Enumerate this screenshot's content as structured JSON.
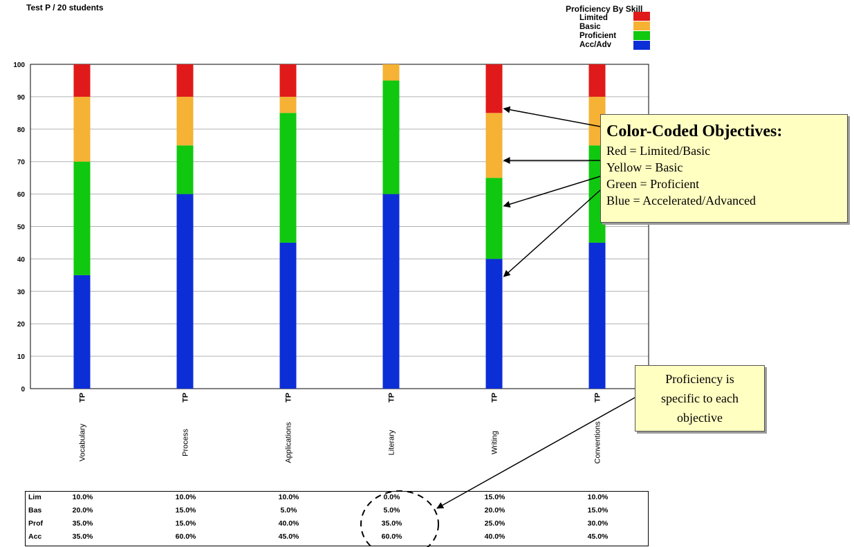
{
  "header": {
    "subtitle": "Test P / 20 students"
  },
  "legend": {
    "title": "Proficiency By Skill",
    "items": [
      {
        "label": "Limited",
        "color": "#e01a1a"
      },
      {
        "label": "Basic",
        "color": "#f5b234"
      },
      {
        "label": "Proficient",
        "color": "#10c810"
      },
      {
        "label": "Acc/Adv",
        "color": "#0c2ed6"
      }
    ]
  },
  "chart_data": {
    "type": "bar",
    "stacked": true,
    "ylim": [
      0,
      100
    ],
    "yticks": [
      "0",
      "10",
      "20",
      "30",
      "40",
      "50",
      "60",
      "70",
      "80",
      "90",
      "100"
    ],
    "group_label": "TP",
    "categories": [
      "Vocabulary",
      "Process",
      "Applications",
      "Literary",
      "Writing",
      "Conventions"
    ],
    "series": [
      {
        "name": "Acc/Adv",
        "color": "#0c2ed6",
        "values": [
          35,
          60,
          45,
          60,
          40,
          45
        ]
      },
      {
        "name": "Proficient",
        "color": "#10c810",
        "values": [
          35,
          15,
          40,
          35,
          25,
          30
        ]
      },
      {
        "name": "Basic",
        "color": "#f5b234",
        "values": [
          20,
          15,
          5,
          5,
          20,
          15
        ]
      },
      {
        "name": "Limited",
        "color": "#e01a1a",
        "values": [
          10,
          10,
          10,
          0,
          15,
          10
        ]
      }
    ],
    "grid": true
  },
  "table": {
    "rows": [
      {
        "label": "Lim",
        "values": [
          "10.0%",
          "10.0%",
          "10.0%",
          "0.0%",
          "15.0%",
          "10.0%"
        ]
      },
      {
        "label": "Bas",
        "values": [
          "20.0%",
          "15.0%",
          "5.0%",
          "5.0%",
          "20.0%",
          "15.0%"
        ]
      },
      {
        "label": "Prof",
        "values": [
          "35.0%",
          "15.0%",
          "40.0%",
          "35.0%",
          "25.0%",
          "30.0%"
        ]
      },
      {
        "label": "Acc",
        "values": [
          "35.0%",
          "60.0%",
          "45.0%",
          "60.0%",
          "40.0%",
          "45.0%"
        ]
      }
    ]
  },
  "callout_objectives": {
    "title": "Color-Coded Objectives:",
    "lines": [
      "Red = Limited/Basic",
      "Yellow = Basic",
      "Green = Proficient",
      "Blue = Accelerated/Advanced"
    ]
  },
  "callout_proficiency": {
    "text": "Proficiency is specific to each objective"
  }
}
